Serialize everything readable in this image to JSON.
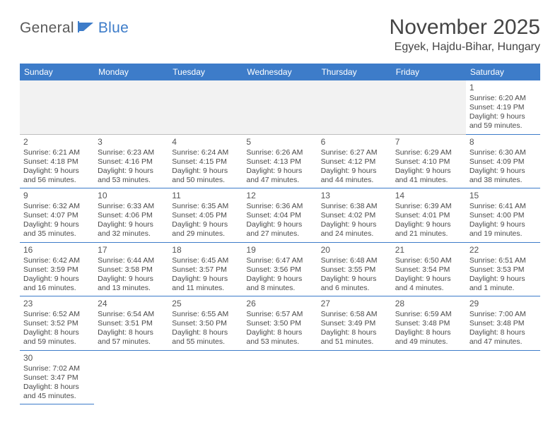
{
  "logo": {
    "part1": "General",
    "part2": "Blue"
  },
  "title": "November 2025",
  "location": "Egyek, Hajdu-Bihar, Hungary",
  "colors": {
    "header_bg": "#3d7cc9",
    "header_text": "#ffffff",
    "cell_border": "#3d7cc9",
    "empty_bg": "#f2f2f2",
    "empty_border": "#bfbfbf",
    "text": "#4a4a4a",
    "title_text": "#444444"
  },
  "day_headers": [
    "Sunday",
    "Monday",
    "Tuesday",
    "Wednesday",
    "Thursday",
    "Friday",
    "Saturday"
  ],
  "leading_empty": 6,
  "trailing_empty": 6,
  "days": [
    {
      "n": "1",
      "sunrise": "Sunrise: 6:20 AM",
      "sunset": "Sunset: 4:19 PM",
      "daylight": "Daylight: 9 hours and 59 minutes."
    },
    {
      "n": "2",
      "sunrise": "Sunrise: 6:21 AM",
      "sunset": "Sunset: 4:18 PM",
      "daylight": "Daylight: 9 hours and 56 minutes."
    },
    {
      "n": "3",
      "sunrise": "Sunrise: 6:23 AM",
      "sunset": "Sunset: 4:16 PM",
      "daylight": "Daylight: 9 hours and 53 minutes."
    },
    {
      "n": "4",
      "sunrise": "Sunrise: 6:24 AM",
      "sunset": "Sunset: 4:15 PM",
      "daylight": "Daylight: 9 hours and 50 minutes."
    },
    {
      "n": "5",
      "sunrise": "Sunrise: 6:26 AM",
      "sunset": "Sunset: 4:13 PM",
      "daylight": "Daylight: 9 hours and 47 minutes."
    },
    {
      "n": "6",
      "sunrise": "Sunrise: 6:27 AM",
      "sunset": "Sunset: 4:12 PM",
      "daylight": "Daylight: 9 hours and 44 minutes."
    },
    {
      "n": "7",
      "sunrise": "Sunrise: 6:29 AM",
      "sunset": "Sunset: 4:10 PM",
      "daylight": "Daylight: 9 hours and 41 minutes."
    },
    {
      "n": "8",
      "sunrise": "Sunrise: 6:30 AM",
      "sunset": "Sunset: 4:09 PM",
      "daylight": "Daylight: 9 hours and 38 minutes."
    },
    {
      "n": "9",
      "sunrise": "Sunrise: 6:32 AM",
      "sunset": "Sunset: 4:07 PM",
      "daylight": "Daylight: 9 hours and 35 minutes."
    },
    {
      "n": "10",
      "sunrise": "Sunrise: 6:33 AM",
      "sunset": "Sunset: 4:06 PM",
      "daylight": "Daylight: 9 hours and 32 minutes."
    },
    {
      "n": "11",
      "sunrise": "Sunrise: 6:35 AM",
      "sunset": "Sunset: 4:05 PM",
      "daylight": "Daylight: 9 hours and 29 minutes."
    },
    {
      "n": "12",
      "sunrise": "Sunrise: 6:36 AM",
      "sunset": "Sunset: 4:04 PM",
      "daylight": "Daylight: 9 hours and 27 minutes."
    },
    {
      "n": "13",
      "sunrise": "Sunrise: 6:38 AM",
      "sunset": "Sunset: 4:02 PM",
      "daylight": "Daylight: 9 hours and 24 minutes."
    },
    {
      "n": "14",
      "sunrise": "Sunrise: 6:39 AM",
      "sunset": "Sunset: 4:01 PM",
      "daylight": "Daylight: 9 hours and 21 minutes."
    },
    {
      "n": "15",
      "sunrise": "Sunrise: 6:41 AM",
      "sunset": "Sunset: 4:00 PM",
      "daylight": "Daylight: 9 hours and 19 minutes."
    },
    {
      "n": "16",
      "sunrise": "Sunrise: 6:42 AM",
      "sunset": "Sunset: 3:59 PM",
      "daylight": "Daylight: 9 hours and 16 minutes."
    },
    {
      "n": "17",
      "sunrise": "Sunrise: 6:44 AM",
      "sunset": "Sunset: 3:58 PM",
      "daylight": "Daylight: 9 hours and 13 minutes."
    },
    {
      "n": "18",
      "sunrise": "Sunrise: 6:45 AM",
      "sunset": "Sunset: 3:57 PM",
      "daylight": "Daylight: 9 hours and 11 minutes."
    },
    {
      "n": "19",
      "sunrise": "Sunrise: 6:47 AM",
      "sunset": "Sunset: 3:56 PM",
      "daylight": "Daylight: 9 hours and 8 minutes."
    },
    {
      "n": "20",
      "sunrise": "Sunrise: 6:48 AM",
      "sunset": "Sunset: 3:55 PM",
      "daylight": "Daylight: 9 hours and 6 minutes."
    },
    {
      "n": "21",
      "sunrise": "Sunrise: 6:50 AM",
      "sunset": "Sunset: 3:54 PM",
      "daylight": "Daylight: 9 hours and 4 minutes."
    },
    {
      "n": "22",
      "sunrise": "Sunrise: 6:51 AM",
      "sunset": "Sunset: 3:53 PM",
      "daylight": "Daylight: 9 hours and 1 minute."
    },
    {
      "n": "23",
      "sunrise": "Sunrise: 6:52 AM",
      "sunset": "Sunset: 3:52 PM",
      "daylight": "Daylight: 8 hours and 59 minutes."
    },
    {
      "n": "24",
      "sunrise": "Sunrise: 6:54 AM",
      "sunset": "Sunset: 3:51 PM",
      "daylight": "Daylight: 8 hours and 57 minutes."
    },
    {
      "n": "25",
      "sunrise": "Sunrise: 6:55 AM",
      "sunset": "Sunset: 3:50 PM",
      "daylight": "Daylight: 8 hours and 55 minutes."
    },
    {
      "n": "26",
      "sunrise": "Sunrise: 6:57 AM",
      "sunset": "Sunset: 3:50 PM",
      "daylight": "Daylight: 8 hours and 53 minutes."
    },
    {
      "n": "27",
      "sunrise": "Sunrise: 6:58 AM",
      "sunset": "Sunset: 3:49 PM",
      "daylight": "Daylight: 8 hours and 51 minutes."
    },
    {
      "n": "28",
      "sunrise": "Sunrise: 6:59 AM",
      "sunset": "Sunset: 3:48 PM",
      "daylight": "Daylight: 8 hours and 49 minutes."
    },
    {
      "n": "29",
      "sunrise": "Sunrise: 7:00 AM",
      "sunset": "Sunset: 3:48 PM",
      "daylight": "Daylight: 8 hours and 47 minutes."
    },
    {
      "n": "30",
      "sunrise": "Sunrise: 7:02 AM",
      "sunset": "Sunset: 3:47 PM",
      "daylight": "Daylight: 8 hours and 45 minutes."
    }
  ]
}
